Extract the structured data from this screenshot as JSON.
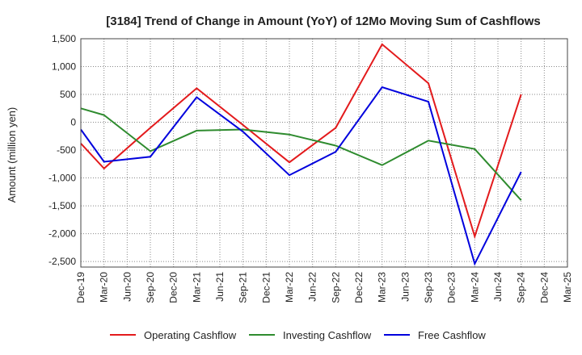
{
  "chart_data": {
    "type": "line",
    "title": "[3184]  Trend of Change in Amount (YoY) of 12Mo Moving Sum of Cashflows",
    "xlabel": "",
    "ylabel": "Amount (million yen)",
    "ylim": [
      -2600,
      1500
    ],
    "yticks": [
      1500,
      1000,
      500,
      0,
      -500,
      -1000,
      -1500,
      -2000,
      -2500
    ],
    "ytick_labels": [
      "1,500",
      "1,000",
      "500",
      "0",
      "-500",
      "-1,000",
      "-1,500",
      "-2,000",
      "-2,500"
    ],
    "categories": [
      "Dec-19",
      "Mar-20",
      "Jun-20",
      "Sep-20",
      "Dec-20",
      "Mar-21",
      "Jun-21",
      "Sep-21",
      "Dec-21",
      "Mar-22",
      "Jun-22",
      "Sep-22",
      "Dec-22",
      "Mar-23",
      "Jun-23",
      "Sep-23",
      "Dec-23",
      "Mar-24",
      "Jun-24",
      "Sep-24",
      "Dec-24",
      "Mar-25"
    ],
    "grid": true,
    "legend_position": "bottom",
    "series": [
      {
        "name": "Operating Cashflow",
        "color": "#e31a1c",
        "points": [
          [
            0,
            -380
          ],
          [
            1,
            -830
          ],
          [
            3,
            -100
          ],
          [
            5,
            610
          ],
          [
            7,
            -50
          ],
          [
            9,
            -720
          ],
          [
            11,
            -100
          ],
          [
            13,
            1400
          ],
          [
            15,
            700
          ],
          [
            17,
            -2050
          ],
          [
            19,
            500
          ]
        ]
      },
      {
        "name": "Investing Cashflow",
        "color": "#2e8b2e",
        "points": [
          [
            0,
            250
          ],
          [
            1,
            130
          ],
          [
            3,
            -520
          ],
          [
            5,
            -150
          ],
          [
            7,
            -130
          ],
          [
            9,
            -220
          ],
          [
            11,
            -420
          ],
          [
            13,
            -770
          ],
          [
            15,
            -330
          ],
          [
            17,
            -480
          ],
          [
            19,
            -1400
          ]
        ]
      },
      {
        "name": "Free Cashflow",
        "color": "#0000dd",
        "points": [
          [
            0,
            -130
          ],
          [
            1,
            -710
          ],
          [
            3,
            -620
          ],
          [
            5,
            450
          ],
          [
            7,
            -170
          ],
          [
            9,
            -950
          ],
          [
            11,
            -530
          ],
          [
            13,
            630
          ],
          [
            15,
            370
          ],
          [
            17,
            -2540
          ],
          [
            19,
            -890
          ]
        ]
      }
    ]
  }
}
